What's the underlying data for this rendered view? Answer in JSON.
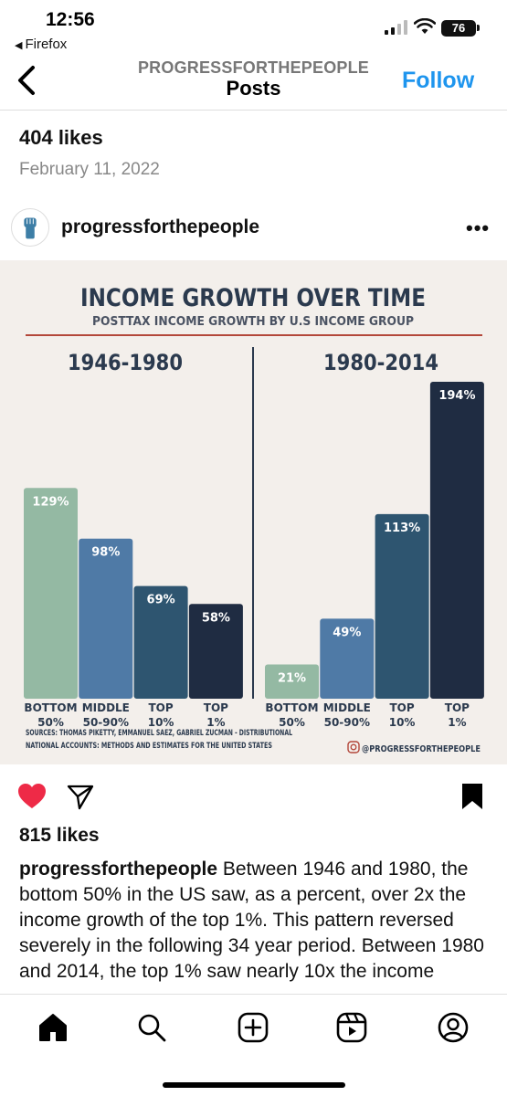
{
  "status_bar": {
    "time": "12:56",
    "back_app": "Firefox",
    "battery": "76"
  },
  "header": {
    "account": "PROGRESSFORTHEPEOPLE",
    "title": "Posts",
    "follow_label": "Follow"
  },
  "previous_post": {
    "likes": "404 likes",
    "date": "February 11, 2022"
  },
  "post": {
    "username": "progressforthepeople",
    "more_icon": "more-horizontal-icon",
    "likes": "815 likes",
    "caption_user": "progressforthepeople",
    "caption_text": " Between 1946 and 1980, the bottom 50% in the US saw, as a percent, over 2x the income growth of the top 1%. This pattern reversed severely in the following 34 year period. Between 1980 and 2014, the top 1% saw nearly 10x the income"
  },
  "infographic": {
    "title": "INCOME GROWTH OVER TIME",
    "subtitle": "POSTTAX INCOME GROWTH BY U.S INCOME GROUP",
    "sources_line1": "SOURCES: THOMAS PIKETTY, EMMANUEL SAEZ, GABRIEL ZUCMAN - DISTRIBUTIONAL",
    "sources_line2": "NATIONAL ACCOUNTS: METHODS AND ESTIMATES FOR THE UNITED STATES",
    "handle": "@PROGRESSFORTHEPEOPLE"
  },
  "chart_data": [
    {
      "type": "bar",
      "title": "1946-1980",
      "categories": [
        "BOTTOM 50%",
        "MIDDLE 50-90%",
        "TOP 10%",
        "TOP 1%"
      ],
      "category_lines": [
        [
          "BOTTOM",
          "50%"
        ],
        [
          "MIDDLE",
          "50-90%"
        ],
        [
          "TOP",
          "10%"
        ],
        [
          "TOP",
          "1%"
        ]
      ],
      "values": [
        129,
        98,
        69,
        58
      ],
      "data_labels": [
        "129%",
        "98%",
        "69%",
        "58%"
      ],
      "colors": [
        "#94b9a3",
        "#4f7aa6",
        "#2e5570",
        "#1f2c42"
      ],
      "ylim": [
        0,
        194
      ],
      "grid": false
    },
    {
      "type": "bar",
      "title": "1980-2014",
      "categories": [
        "BOTTOM 50%",
        "MIDDLE 50-90%",
        "TOP 10%",
        "TOP 1%"
      ],
      "category_lines": [
        [
          "BOTTOM",
          "50%"
        ],
        [
          "MIDDLE",
          "50-90%"
        ],
        [
          "TOP",
          "10%"
        ],
        [
          "TOP",
          "1%"
        ]
      ],
      "values": [
        21,
        49,
        113,
        194
      ],
      "data_labels": [
        "21%",
        "49%",
        "113%",
        "194%"
      ],
      "colors": [
        "#94b9a3",
        "#4f7aa6",
        "#2e5570",
        "#1f2c42"
      ],
      "ylim": [
        0,
        194
      ],
      "grid": false
    }
  ],
  "tabs": [
    {
      "name": "tab-home",
      "icon": "home-icon"
    },
    {
      "name": "tab-search",
      "icon": "search-icon"
    },
    {
      "name": "tab-create",
      "icon": "plus-square-icon"
    },
    {
      "name": "tab-reels",
      "icon": "reels-icon"
    },
    {
      "name": "tab-profile",
      "icon": "profile-icon"
    }
  ],
  "colors": {
    "accent": "#1e95ee",
    "like": "#ee2a47",
    "infographic_bg": "#f3efeb",
    "title_navy": "#2b3a4e",
    "rule_red": "#b3473a"
  }
}
